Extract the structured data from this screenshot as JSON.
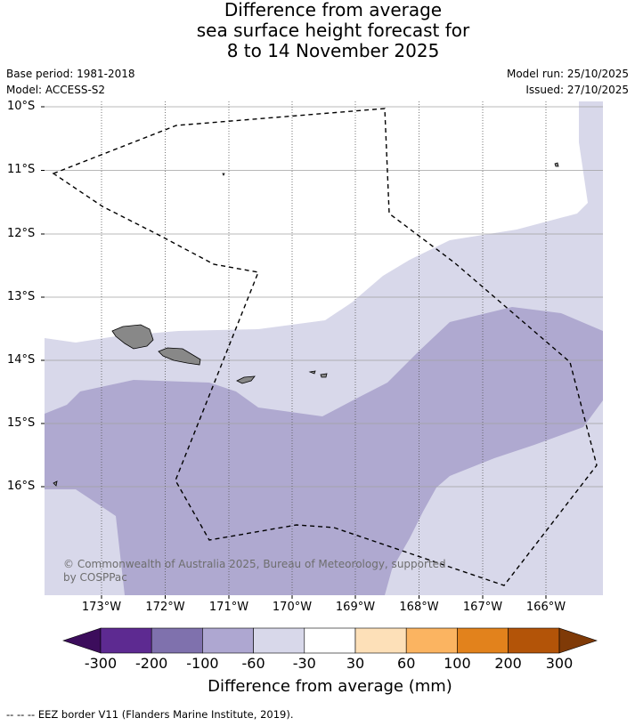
{
  "title": {
    "line1": "Difference from average",
    "line2": "sea surface height forecast for",
    "line3": "8 to 14 November 2025"
  },
  "meta": {
    "base_period": "Base period: 1981-2018",
    "model": "Model: ACCESS-S2",
    "model_run": "Model run: 25/10/2025",
    "issued": "Issued: 27/10/2025"
  },
  "map": {
    "lat_labels": [
      "10°S",
      "11°S",
      "12°S",
      "13°S",
      "14°S",
      "15°S",
      "16°S"
    ],
    "lon_labels": [
      "173°W",
      "172°W",
      "171°W",
      "170°W",
      "169°W",
      "168°W",
      "167°W",
      "166°W"
    ],
    "copyright": "© Commonwealth of Australia 2025, Bureau of Meteorology, supported by COSPPac",
    "colors": {
      "ocean_light": "#d8d8ea",
      "ocean_medium": "#afa9d0",
      "land": "#888888",
      "neutral": "#ffffff"
    }
  },
  "colorbar": {
    "title": "Difference from average (mm)",
    "labels": [
      "-300",
      "-200",
      "-100",
      "-60",
      "-30",
      "30",
      "60",
      "100",
      "200",
      "300"
    ],
    "colors": [
      "#3c0d5c",
      "#5d2a91",
      "#7f71ad",
      "#aea7d1",
      "#d8d8ea",
      "#ffffff",
      "#fde0b8",
      "#fbb461",
      "#e2821c",
      "#b35408",
      "#7f3a07"
    ]
  },
  "footnote": "--  --  -- EEZ border V11 (Flanders Marine Institute, 2019)."
}
